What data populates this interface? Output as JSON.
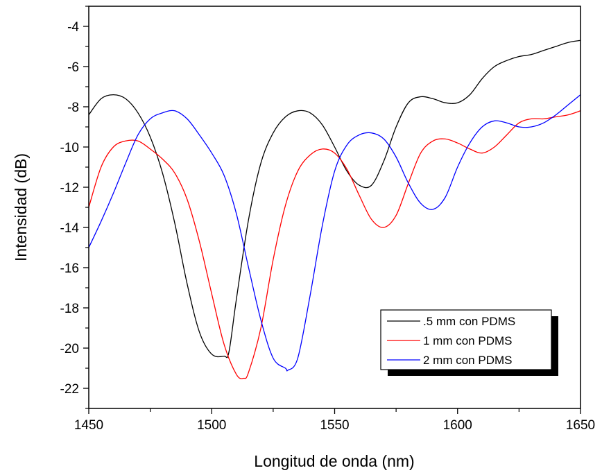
{
  "chart_data": {
    "type": "line",
    "xlabel": "Longitud de onda (nm)",
    "ylabel": "Intensidad (dB)",
    "xlim": [
      1450,
      1650
    ],
    "ylim": [
      -23,
      -3
    ],
    "xticks": [
      "1450",
      "1500",
      "1550",
      "1600",
      "1650"
    ],
    "yticks": [
      "-4",
      "-6",
      "-8",
      "-10",
      "-12",
      "-14",
      "-16",
      "-18",
      "-20",
      "-22"
    ],
    "grid": false,
    "legend_position": "bottom-right",
    "series": [
      {
        "name": ".5 mm con PDMS",
        "color": "#000000",
        "x": [
          1450,
          1455,
          1460,
          1465,
          1470,
          1475,
          1480,
          1485,
          1490,
          1495,
          1500,
          1505,
          1507,
          1510,
          1515,
          1520,
          1525,
          1530,
          1535,
          1540,
          1545,
          1550,
          1555,
          1560,
          1565,
          1570,
          1575,
          1580,
          1585,
          1590,
          1595,
          1600,
          1605,
          1610,
          1615,
          1620,
          1625,
          1630,
          1635,
          1640,
          1645,
          1650
        ],
        "y": [
          -8.4,
          -7.6,
          -7.4,
          -7.6,
          -8.3,
          -9.5,
          -11.3,
          -13.8,
          -16.8,
          -19.2,
          -20.3,
          -20.4,
          -20.2,
          -17.6,
          -13.6,
          -10.8,
          -9.3,
          -8.5,
          -8.2,
          -8.3,
          -8.9,
          -10.0,
          -11.2,
          -11.9,
          -11.9,
          -10.7,
          -9.0,
          -7.8,
          -7.5,
          -7.6,
          -7.8,
          -7.8,
          -7.4,
          -6.6,
          -6.0,
          -5.7,
          -5.5,
          -5.4,
          -5.2,
          -5.0,
          -4.8,
          -4.7
        ]
      },
      {
        "name": "1 mm con PDMS",
        "color": "#ff0000",
        "x": [
          1450,
          1455,
          1460,
          1465,
          1470,
          1475,
          1480,
          1485,
          1490,
          1495,
          1500,
          1505,
          1510,
          1513,
          1515,
          1520,
          1525,
          1530,
          1535,
          1540,
          1545,
          1550,
          1555,
          1560,
          1565,
          1570,
          1575,
          1580,
          1585,
          1590,
          1595,
          1600,
          1605,
          1610,
          1615,
          1620,
          1625,
          1630,
          1635,
          1640,
          1645,
          1650
        ],
        "y": [
          -13.0,
          -11.0,
          -10.0,
          -9.7,
          -9.7,
          -10.1,
          -10.6,
          -11.3,
          -12.6,
          -14.7,
          -17.3,
          -19.8,
          -21.3,
          -21.5,
          -21.2,
          -19.0,
          -15.6,
          -12.9,
          -11.2,
          -10.4,
          -10.1,
          -10.3,
          -11.1,
          -12.4,
          -13.6,
          -14.0,
          -13.4,
          -11.8,
          -10.3,
          -9.7,
          -9.6,
          -9.8,
          -10.1,
          -10.3,
          -10.0,
          -9.4,
          -8.8,
          -8.6,
          -8.6,
          -8.5,
          -8.4,
          -8.2
        ]
      },
      {
        "name": "2 mm con PDMS",
        "color": "#0000ff",
        "x": [
          1450,
          1455,
          1460,
          1465,
          1470,
          1475,
          1480,
          1485,
          1490,
          1495,
          1500,
          1505,
          1510,
          1515,
          1520,
          1525,
          1530,
          1531,
          1535,
          1540,
          1545,
          1550,
          1555,
          1560,
          1565,
          1570,
          1575,
          1580,
          1585,
          1590,
          1595,
          1600,
          1605,
          1610,
          1615,
          1620,
          1625,
          1630,
          1635,
          1640,
          1645,
          1650
        ],
        "y": [
          -15.0,
          -13.7,
          -12.3,
          -10.8,
          -9.4,
          -8.6,
          -8.3,
          -8.2,
          -8.6,
          -9.4,
          -10.3,
          -11.4,
          -13.3,
          -16.0,
          -18.6,
          -20.5,
          -21.0,
          -21.1,
          -20.5,
          -17.4,
          -13.9,
          -11.2,
          -9.9,
          -9.4,
          -9.3,
          -9.6,
          -10.5,
          -11.8,
          -12.8,
          -13.1,
          -12.5,
          -11.0,
          -9.8,
          -9.0,
          -8.7,
          -8.8,
          -9.0,
          -9.0,
          -8.8,
          -8.4,
          -7.9,
          -7.4
        ]
      }
    ]
  }
}
